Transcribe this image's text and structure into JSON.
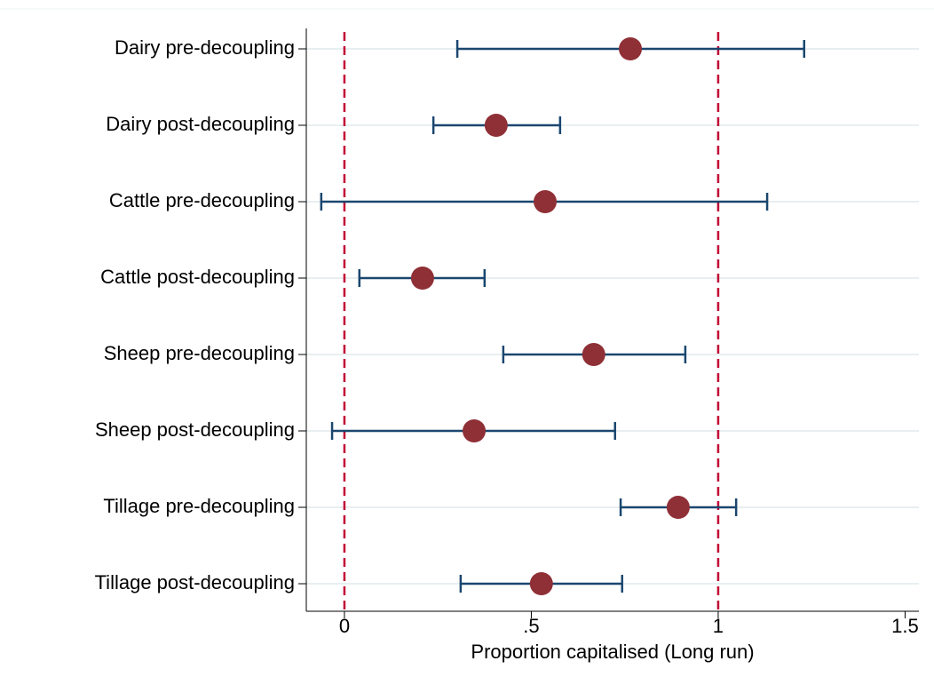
{
  "chart_data": {
    "type": "errorbar",
    "categories": [
      "Dairy pre-decoupling",
      "Dairy post-decoupling",
      "Cattle pre-decoupling",
      "Cattle post-decoupling",
      "Sheep pre-decoupling",
      "Sheep post-decoupling",
      "Tillage pre-decoupling",
      "Tillage post-decoupling"
    ],
    "values": [
      0.765,
      0.406,
      0.537,
      0.209,
      0.667,
      0.347,
      0.893,
      0.527
    ],
    "lower": [
      0.302,
      0.238,
      -0.062,
      0.04,
      0.425,
      -0.033,
      0.739,
      0.311
    ],
    "upper": [
      1.23,
      0.577,
      1.131,
      0.375,
      0.912,
      0.724,
      1.048,
      0.743
    ],
    "xlabel": "Proportion capitalised (Long run)",
    "xlim": [
      -0.102,
      1.537
    ],
    "xticks": [
      0,
      {
        "value": 0.5,
        "label": ".5"
      },
      1,
      1.5
    ],
    "reference_lines": [
      0,
      1
    ],
    "color": "#8f2f36",
    "bar_color": "#1a476f",
    "reference_color": "#c10534",
    "grid": true
  }
}
